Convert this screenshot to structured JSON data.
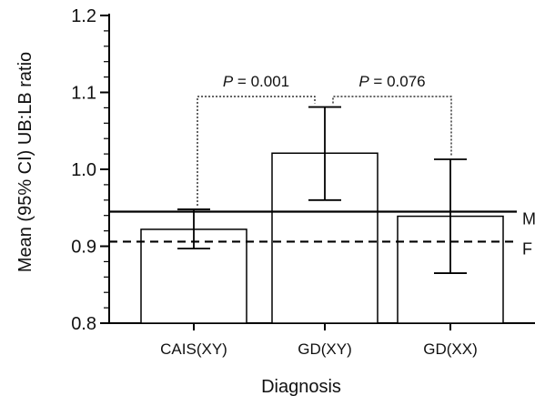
{
  "chart_data": {
    "type": "bar",
    "xlabel": "Diagnosis",
    "ylabel": "Mean (95% CI) UB:LB ratio",
    "ylim": [
      0.8,
      1.2
    ],
    "yticks": [
      "0.8",
      "0.9",
      "1.0",
      "1.1",
      "1.2"
    ],
    "categories": [
      "CAIS(XY)",
      "GD(XY)",
      "GD(XX)"
    ],
    "values": [
      0.922,
      1.021,
      0.939
    ],
    "ci_low": [
      0.897,
      0.96,
      0.865
    ],
    "ci_high": [
      0.948,
      1.081,
      1.013
    ],
    "reference_lines": [
      {
        "label": "M",
        "value": 0.945,
        "style": "solid"
      },
      {
        "label": "F",
        "value": 0.906,
        "style": "dashed"
      }
    ],
    "comparisons": [
      {
        "from": 0,
        "to": 1,
        "p_symbol": "P",
        "p_text": " = 0.001"
      },
      {
        "from": 1,
        "to": 2,
        "p_symbol": "P",
        "p_text": " = 0.076"
      }
    ],
    "grid": false,
    "colors": {
      "bar_fill": "#ffffff",
      "stroke": "#000000"
    }
  }
}
